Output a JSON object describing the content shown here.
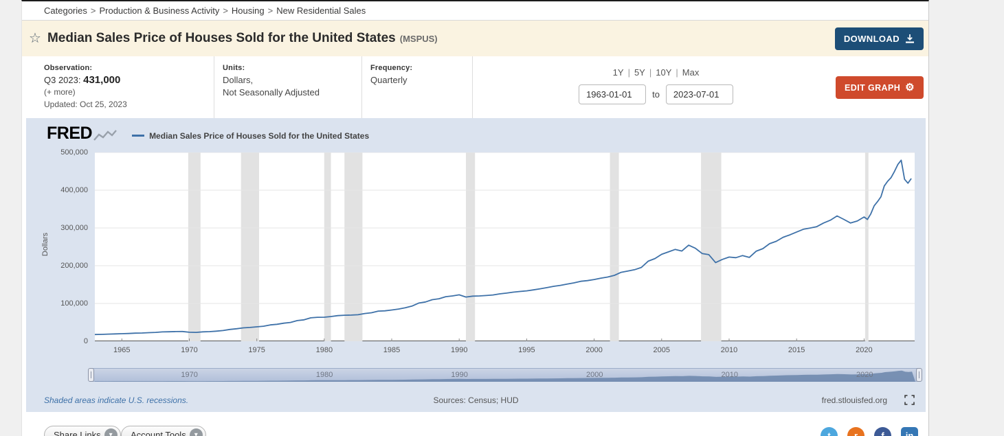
{
  "breadcrumb": {
    "separator": ">",
    "items": [
      "Categories",
      "Production & Business Activity",
      "Housing",
      "New Residential Sales"
    ]
  },
  "header": {
    "title": "Median Sales Price of Houses Sold for the United States",
    "series_id": "(MSPUS)",
    "download_label": "DOWNLOAD"
  },
  "meta": {
    "observation": {
      "label": "Observation:",
      "period": "Q3 2023:",
      "value": "431,000",
      "more": "(+ more)",
      "updated": "Updated: Oct 25, 2023"
    },
    "units": {
      "label": "Units:",
      "line1": "Dollars,",
      "line2": "Not Seasonally Adjusted"
    },
    "frequency": {
      "label": "Frequency:",
      "value": "Quarterly"
    }
  },
  "range_controls": {
    "presets": [
      "1Y",
      "5Y",
      "10Y",
      "Max"
    ],
    "divider": "|",
    "start_date": "1963-01-01",
    "to_label": "to",
    "end_date": "2023-07-01",
    "edit_graph_label": "EDIT GRAPH"
  },
  "chart_header": {
    "logo": "FRED",
    "legend": "Median Sales Price of Houses Sold for the United States"
  },
  "chart_footer": {
    "recession_note": "Shaded areas indicate U.S. recessions.",
    "sources": "Sources: Census; HUD",
    "site": "fred.stlouisfed.org"
  },
  "footer": {
    "share_links": "Share Links",
    "account_tools": "Account Tools"
  },
  "colors": {
    "accent_download": "#1d4e77",
    "accent_edit": "#cf4a2c",
    "chart_background": "#dbe3ef",
    "line": "#3e71a8",
    "recession_band": "#e2e2e2"
  },
  "chart_data": {
    "type": "line",
    "title": "Median Sales Price of Houses Sold for the United States",
    "ylabel": "Dollars",
    "x_range": [
      1963,
      2023.75
    ],
    "ylim": [
      0,
      500000
    ],
    "y_ticks": [
      0,
      100000,
      200000,
      300000,
      400000,
      500000
    ],
    "y_tick_labels": [
      "0",
      "100,000",
      "200,000",
      "300,000",
      "400,000",
      "500,000"
    ],
    "x_ticks": [
      1965,
      1970,
      1975,
      1980,
      1985,
      1990,
      1995,
      2000,
      2005,
      2010,
      2015,
      2020
    ],
    "slider_ticks": [
      1970,
      1980,
      1990,
      2000,
      2010,
      2020
    ],
    "grid": true,
    "legend_position": "top-left",
    "line_color": "#3e71a8",
    "recessions": [
      [
        1969.92,
        1970.83
      ],
      [
        1973.83,
        1975.17
      ],
      [
        1980.0,
        1980.5
      ],
      [
        1981.5,
        1982.83
      ],
      [
        1990.5,
        1991.17
      ],
      [
        2001.17,
        2001.83
      ],
      [
        2007.92,
        2009.42
      ],
      [
        2020.08,
        2020.33
      ]
    ],
    "series": [
      {
        "name": "MSPUS",
        "points": [
          [
            1963,
            17800
          ],
          [
            1963.5,
            18200
          ],
          [
            1964,
            18900
          ],
          [
            1964.5,
            19400
          ],
          [
            1965,
            20000
          ],
          [
            1965.5,
            20600
          ],
          [
            1966,
            21400
          ],
          [
            1966.5,
            21900
          ],
          [
            1967,
            22700
          ],
          [
            1967.5,
            23400
          ],
          [
            1968,
            24700
          ],
          [
            1968.5,
            25100
          ],
          [
            1969,
            25600
          ],
          [
            1969.5,
            25900
          ],
          [
            1970,
            23900
          ],
          [
            1970.5,
            23400
          ],
          [
            1971,
            24900
          ],
          [
            1971.5,
            25500
          ],
          [
            1972,
            26800
          ],
          [
            1972.5,
            28300
          ],
          [
            1973,
            31200
          ],
          [
            1973.5,
            33100
          ],
          [
            1974,
            35500
          ],
          [
            1974.5,
            36600
          ],
          [
            1975,
            38100
          ],
          [
            1975.5,
            39800
          ],
          [
            1976,
            43200
          ],
          [
            1976.5,
            44900
          ],
          [
            1977,
            47900
          ],
          [
            1977.5,
            49800
          ],
          [
            1978,
            54800
          ],
          [
            1978.5,
            56700
          ],
          [
            1979,
            62000
          ],
          [
            1979.5,
            63500
          ],
          [
            1980,
            63700
          ],
          [
            1980.5,
            65400
          ],
          [
            1981,
            67800
          ],
          [
            1981.5,
            68900
          ],
          [
            1982,
            69300
          ],
          [
            1982.5,
            70100
          ],
          [
            1983,
            73500
          ],
          [
            1983.5,
            75500
          ],
          [
            1984,
            79900
          ],
          [
            1984.5,
            80600
          ],
          [
            1985,
            82800
          ],
          [
            1985.5,
            85300
          ],
          [
            1986,
            88500
          ],
          [
            1986.5,
            93000
          ],
          [
            1987,
            101000
          ],
          [
            1987.5,
            104000
          ],
          [
            1988,
            110000
          ],
          [
            1988.5,
            112500
          ],
          [
            1989,
            118000
          ],
          [
            1989.5,
            120000
          ],
          [
            1990,
            122900
          ],
          [
            1990.5,
            117000
          ],
          [
            1991,
            119500
          ],
          [
            1991.5,
            120000
          ],
          [
            1992,
            121000
          ],
          [
            1992.5,
            122500
          ],
          [
            1993,
            125500
          ],
          [
            1993.5,
            127500
          ],
          [
            1994,
            130000
          ],
          [
            1994.5,
            131800
          ],
          [
            1995,
            133500
          ],
          [
            1995.5,
            136000
          ],
          [
            1996,
            139000
          ],
          [
            1996.5,
            142000
          ],
          [
            1997,
            145500
          ],
          [
            1997.5,
            148000
          ],
          [
            1998,
            151500
          ],
          [
            1998.5,
            154500
          ],
          [
            1999,
            158800
          ],
          [
            1999.5,
            160500
          ],
          [
            2000,
            163500
          ],
          [
            2000.5,
            167000
          ],
          [
            2001,
            170000
          ],
          [
            2001.5,
            174500
          ],
          [
            2002,
            182500
          ],
          [
            2002.5,
            186000
          ],
          [
            2003,
            189500
          ],
          [
            2003.5,
            195500
          ],
          [
            2004,
            212000
          ],
          [
            2004.5,
            219000
          ],
          [
            2005,
            230200
          ],
          [
            2005.5,
            236500
          ],
          [
            2006,
            243100
          ],
          [
            2006.5,
            239000
          ],
          [
            2007,
            254400
          ],
          [
            2007.5,
            246200
          ],
          [
            2008,
            232400
          ],
          [
            2008.5,
            229300
          ],
          [
            2009,
            208400
          ],
          [
            2009.5,
            216700
          ],
          [
            2010,
            222900
          ],
          [
            2010.5,
            221300
          ],
          [
            2011,
            226900
          ],
          [
            2011.5,
            222000
          ],
          [
            2012,
            238400
          ],
          [
            2012.5,
            245200
          ],
          [
            2013,
            258400
          ],
          [
            2013.5,
            264800
          ],
          [
            2014,
            275200
          ],
          [
            2014.5,
            281700
          ],
          [
            2015,
            289200
          ],
          [
            2015.5,
            296500
          ],
          [
            2016,
            299800
          ],
          [
            2016.5,
            303500
          ],
          [
            2017,
            313100
          ],
          [
            2017.5,
            320500
          ],
          [
            2018,
            331800
          ],
          [
            2018.5,
            322800
          ],
          [
            2019,
            313000
          ],
          [
            2019.5,
            318400
          ],
          [
            2020,
            329000
          ],
          [
            2020.25,
            322600
          ],
          [
            2020.5,
            337500
          ],
          [
            2020.75,
            358700
          ],
          [
            2021,
            369800
          ],
          [
            2021.25,
            382600
          ],
          [
            2021.5,
            411200
          ],
          [
            2021.75,
            423600
          ],
          [
            2022,
            433100
          ],
          [
            2022.25,
            449300
          ],
          [
            2022.5,
            468000
          ],
          [
            2022.75,
            479500
          ],
          [
            2023,
            429000
          ],
          [
            2023.25,
            418500
          ],
          [
            2023.5,
            431000
          ]
        ]
      }
    ]
  }
}
